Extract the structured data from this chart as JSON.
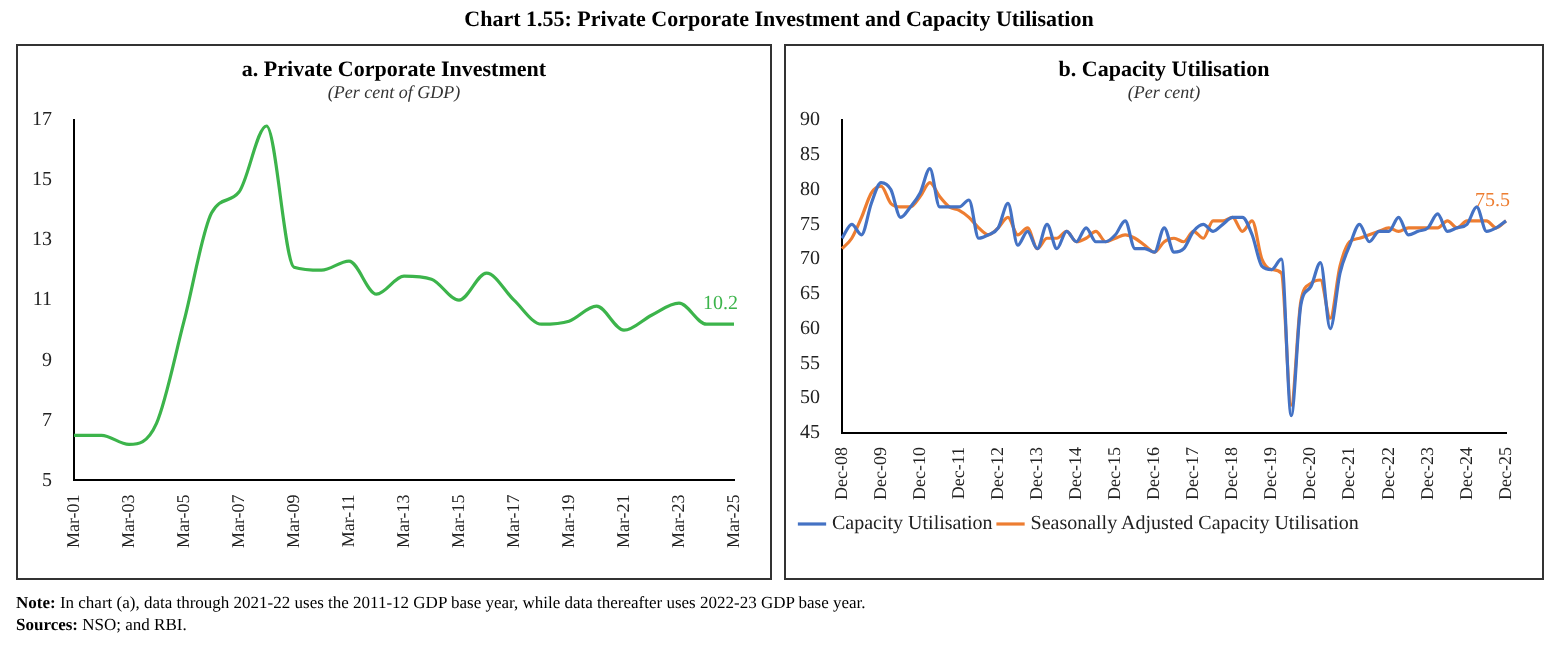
{
  "chart_data": [
    {
      "type": "line",
      "title": "a. Private Corporate Investment",
      "subtitle": "(Per cent of GDP)",
      "categories": [
        "Mar-01",
        null,
        "Mar-03",
        null,
        "Mar-05",
        null,
        "Mar-07",
        null,
        "Mar-09",
        null,
        "Mar-11",
        null,
        "Mar-13",
        null,
        "Mar-15",
        null,
        "Mar-17",
        null,
        "Mar-19",
        null,
        "Mar-21",
        null,
        "Mar-23",
        null,
        "Mar-25"
      ],
      "series": [
        {
          "color": "#3cb44b",
          "values": [
            6.5,
            6.5,
            6.2,
            6.9,
            10.3,
            13.9,
            14.6,
            16.8,
            12.1,
            12.0,
            12.3,
            11.2,
            11.8,
            11.7,
            11.0,
            11.9,
            11.0,
            10.2,
            10.3,
            10.8,
            10.0,
            10.5,
            10.9,
            10.2,
            10.2
          ]
        }
      ],
      "ylim": [
        5,
        17
      ],
      "yticks": [
        5,
        7,
        9,
        11,
        13,
        15,
        17
      ],
      "grid": false,
      "legend": false,
      "marker": "none",
      "line_style": "solid",
      "annotations": [
        "Chart 1.55: Private Corporate Investment and Capacity Utilisation",
        {
          "text": "10.2",
          "x": "Mar-25",
          "y": 10.2
        },
        "Note: In chart (a), data through 2021-22 uses the 2011-12 GDP base year, while data thereafter uses 2022-23 GDP base year.",
        "Sources: NSO; and RBI."
      ]
    },
    {
      "type": "line",
      "title": "b. Capacity Utilisation",
      "subtitle": "(Per cent)",
      "categories": [
        "Dec-08",
        null,
        null,
        null,
        "Dec-09",
        null,
        null,
        null,
        "Dec-10",
        null,
        null,
        null,
        "Dec-11",
        null,
        null,
        null,
        "Dec-12",
        null,
        null,
        null,
        "Dec-13",
        null,
        null,
        null,
        "Dec-14",
        null,
        null,
        null,
        "Dec-15",
        null,
        null,
        null,
        "Dec-16",
        null,
        null,
        null,
        "Dec-17",
        null,
        null,
        null,
        "Dec-18",
        null,
        null,
        null,
        "Dec-19",
        null,
        null,
        null,
        "Dec-20",
        null,
        null,
        null,
        "Dec-21",
        null,
        null,
        null,
        "Dec-22",
        null,
        null,
        null,
        "Dec-23",
        null,
        null,
        null,
        "Dec-24",
        null,
        null,
        null,
        "Dec-25"
      ],
      "series": [
        {
          "name": "Capacity Utilisation",
          "color": "#4472c4",
          "values": [
            73,
            75,
            73.5,
            78,
            81,
            80,
            76,
            77.5,
            79.5,
            83,
            77.5,
            77.5,
            77.5,
            78.5,
            73,
            73.5,
            74.5,
            78,
            72,
            74,
            71.5,
            75,
            71.5,
            74,
            72.5,
            74.5,
            72.5,
            72.5,
            73.5,
            75.5,
            71.5,
            71.5,
            71,
            74.5,
            71,
            71.5,
            74,
            75,
            74,
            75,
            76,
            76,
            73.5,
            69,
            68.5,
            70,
            47.5,
            63.5,
            66,
            69.5,
            60,
            68,
            72,
            75,
            72.5,
            74,
            74,
            76,
            73.5,
            74,
            74.5,
            76.5,
            74,
            74.5,
            75,
            77.5,
            74,
            74.5,
            75.5
          ]
        },
        {
          "name": "Seasonally Adjusted Capacity Utilisation",
          "color": "#ed7d31",
          "values": [
            71.5,
            73,
            76,
            79.5,
            80.5,
            78,
            77.5,
            77.5,
            79,
            81,
            79,
            77.5,
            77,
            76,
            74.5,
            73.5,
            74.5,
            76,
            73.5,
            74.5,
            71.5,
            73,
            73,
            74,
            72.5,
            73,
            74,
            72.5,
            73,
            73.5,
            73,
            72,
            71,
            72.5,
            73,
            72.5,
            74,
            73,
            75.5,
            75.5,
            76,
            74,
            75.5,
            70,
            68.5,
            68,
            49,
            64,
            66.5,
            67,
            61.5,
            69,
            72.5,
            73,
            73.5,
            74,
            74.5,
            74,
            74.5,
            74.5,
            74.5,
            74.5,
            75.5,
            74.5,
            75.5,
            75.5,
            75.5,
            74.5,
            75.5
          ]
        }
      ],
      "ylim": [
        45,
        90
      ],
      "yticks": [
        45,
        50,
        55,
        60,
        65,
        70,
        75,
        80,
        85,
        90
      ],
      "grid": false,
      "legend": "bottom",
      "marker": "none",
      "line_style": "solid",
      "annotations": [
        {
          "text": "75.5",
          "x": "Dec-25",
          "y": 75.5
        }
      ]
    }
  ]
}
